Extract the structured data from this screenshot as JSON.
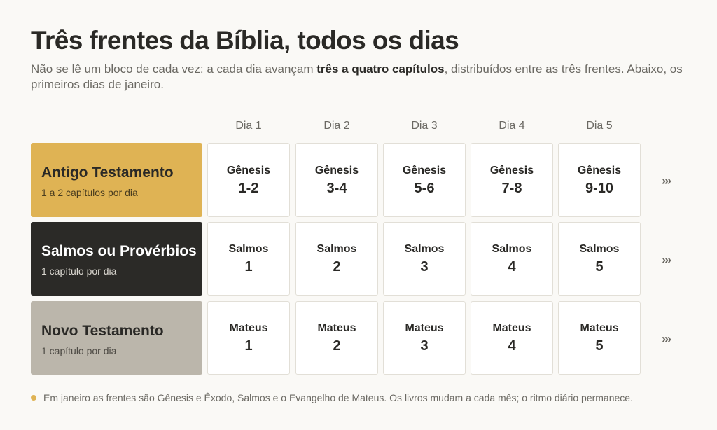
{
  "header": {
    "title": "Três frentes da Bíblia, todos os dias",
    "subtitle_before": "Não se lê um bloco de cada vez: a cada dia avançam ",
    "subtitle_bold": "três a quatro capítulos",
    "subtitle_after": ", distribuídos entre as três frentes. Abaixo, os primeiros dias de janeiro."
  },
  "days": [
    "Dia 1",
    "Dia 2",
    "Dia 3",
    "Dia 4",
    "Dia 5"
  ],
  "more_glyph": "›››",
  "colors": {
    "antigo": "#dfb354",
    "salmos": "#2b2a27",
    "novo": "#bbb6ab",
    "accent_dot": "#dfb354"
  },
  "tracks": [
    {
      "name": "Antigo Testamento",
      "rate": "1 a 2 capítulos por dia",
      "cells": [
        {
          "book": "Gênesis",
          "chapters": "1-2"
        },
        {
          "book": "Gênesis",
          "chapters": "3-4"
        },
        {
          "book": "Gênesis",
          "chapters": "5-6"
        },
        {
          "book": "Gênesis",
          "chapters": "7-8"
        },
        {
          "book": "Gênesis",
          "chapters": "9-10"
        }
      ]
    },
    {
      "name": "Salmos ou Provérbios",
      "rate": "1 capítulo por dia",
      "cells": [
        {
          "book": "Salmos",
          "chapters": "1"
        },
        {
          "book": "Salmos",
          "chapters": "2"
        },
        {
          "book": "Salmos",
          "chapters": "3"
        },
        {
          "book": "Salmos",
          "chapters": "4"
        },
        {
          "book": "Salmos",
          "chapters": "5"
        }
      ]
    },
    {
      "name": "Novo Testamento",
      "rate": "1 capítulo por dia",
      "cells": [
        {
          "book": "Mateus",
          "chapters": "1"
        },
        {
          "book": "Mateus",
          "chapters": "2"
        },
        {
          "book": "Mateus",
          "chapters": "3"
        },
        {
          "book": "Mateus",
          "chapters": "4"
        },
        {
          "book": "Mateus",
          "chapters": "5"
        }
      ]
    }
  ],
  "footnote": "Em janeiro as frentes são Gênesis e Êxodo, Salmos e o Evangelho de Mateus. Os livros mudam a cada mês; o ritmo diário permanece."
}
